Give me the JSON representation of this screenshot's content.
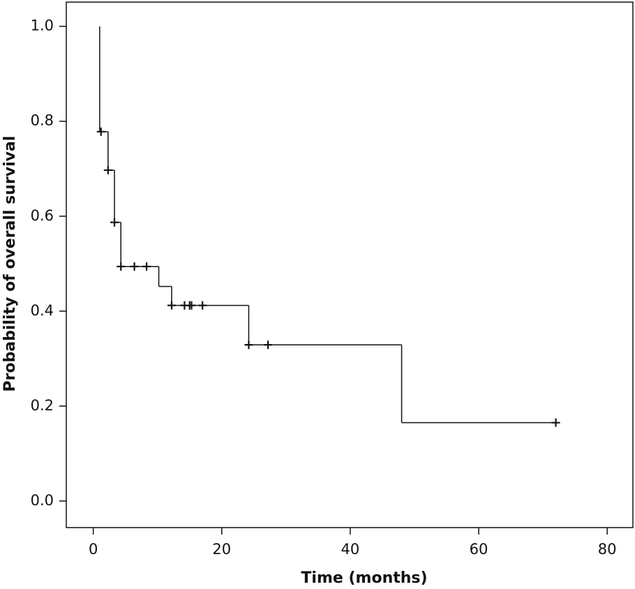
{
  "chart_data": {
    "type": "step",
    "x_label": "Time (months)",
    "y_label": "Probability of overall survival",
    "xlim": [
      -4.2,
      84
    ],
    "ylim": [
      -0.056,
      1.051
    ],
    "xticks": [
      0,
      20,
      40,
      60,
      80
    ],
    "yticks": [
      {
        "value": 0,
        "label": "0.0"
      },
      {
        "value": 0.2,
        "label": "0.2"
      },
      {
        "value": 0.4,
        "label": "0.4"
      },
      {
        "value": 0.6,
        "label": "0.6"
      },
      {
        "value": 0.8,
        "label": "0.8"
      },
      {
        "value": 1,
        "label": "1.0"
      }
    ],
    "color": "#111111",
    "series": [
      {
        "x": [
          1,
          1,
          2.3,
          3.3,
          4.3,
          10.2,
          12.2,
          24.2,
          48,
          72
        ],
        "values": [
          1.0,
          0.778,
          0.697,
          0.587,
          0.494,
          0.452,
          0.412,
          0.329,
          0.165,
          0.165
        ]
      }
    ],
    "censored": {
      "x": [
        1.2,
        2.3,
        3.3,
        4.3,
        6.4,
        8.3,
        12.2,
        14.2,
        15,
        15.3,
        17,
        24.2,
        27.2,
        72
      ],
      "values": [
        0.778,
        0.697,
        0.587,
        0.494,
        0.494,
        0.494,
        0.412,
        0.412,
        0.412,
        0.412,
        0.412,
        0.329,
        0.329,
        0.165
      ]
    }
  }
}
